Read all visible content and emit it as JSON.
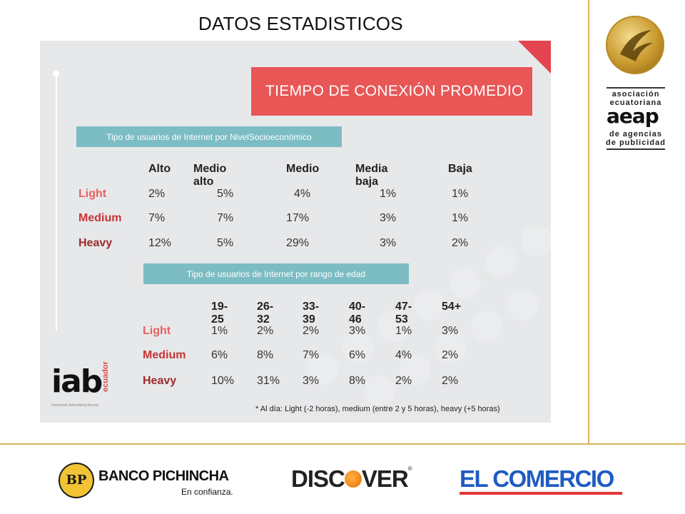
{
  "slide_title": "DATOS ESTADISTICOS",
  "infographic": {
    "main_banner": "TIEMPO DE CONEXIÓN PROMEDIO",
    "section1": {
      "banner": "Tipo de usuarios de Internet por NivelSocioeconómico",
      "columns": [
        "Alto",
        "Medio alto",
        "Medio",
        "Media baja",
        "Baja"
      ],
      "rows": [
        {
          "label": "Light",
          "values": [
            "2%",
            "5%",
            "4%",
            "1%",
            "1%"
          ]
        },
        {
          "label": "Medium",
          "values": [
            "7%",
            "7%",
            "17%",
            "3%",
            "1%"
          ]
        },
        {
          "label": "Heavy",
          "values": [
            "12%",
            "5%",
            "29%",
            "3%",
            "2%"
          ]
        }
      ]
    },
    "section2": {
      "banner": "Tipo de usuarios de Internet por rango de edad",
      "columns": [
        "19-25",
        "26-32",
        "33-39",
        "40-46",
        "47-53",
        "54+"
      ],
      "rows": [
        {
          "label": "Light",
          "values": [
            "1%",
            "2%",
            "2%",
            "3%",
            "1%",
            "3%"
          ]
        },
        {
          "label": "Medium",
          "values": [
            "6%",
            "8%",
            "7%",
            "6%",
            "4%",
            "2%"
          ]
        },
        {
          "label": "Heavy",
          "values": [
            "10%",
            "31%",
            "3%",
            "8%",
            "2%",
            "2%"
          ]
        }
      ]
    },
    "iab_logo": {
      "text": "iab",
      "suffix": "ecuador",
      "tagline": "Interactive Advertising Bureau"
    },
    "footnote": "* Al día: Light (-2 horas), medium (entre 2 y 5 horas), heavy (+5 horas)"
  },
  "aeap_logo": {
    "line1": "asociación",
    "line2": "ecuatoriana",
    "mark": "aeap",
    "line3": "de agencias",
    "line4": "de publicidad"
  },
  "sponsors": {
    "banco_pichincha": {
      "name": "BANCO PICHINCHA",
      "slogan": "En confianza."
    },
    "discover": {
      "pre": "DISC",
      "post": "VER",
      "tm": "®"
    },
    "el_comercio": {
      "name": "EL COMERCIO"
    }
  },
  "colors": {
    "accent_gold": "#d9b45a",
    "banner_red": "#e85656",
    "banner_teal": "#7cbdc3",
    "light": "#e86161",
    "medium": "#c73434",
    "heavy": "#9b2a2a",
    "el_comercio_blue": "#1f5cc2"
  }
}
